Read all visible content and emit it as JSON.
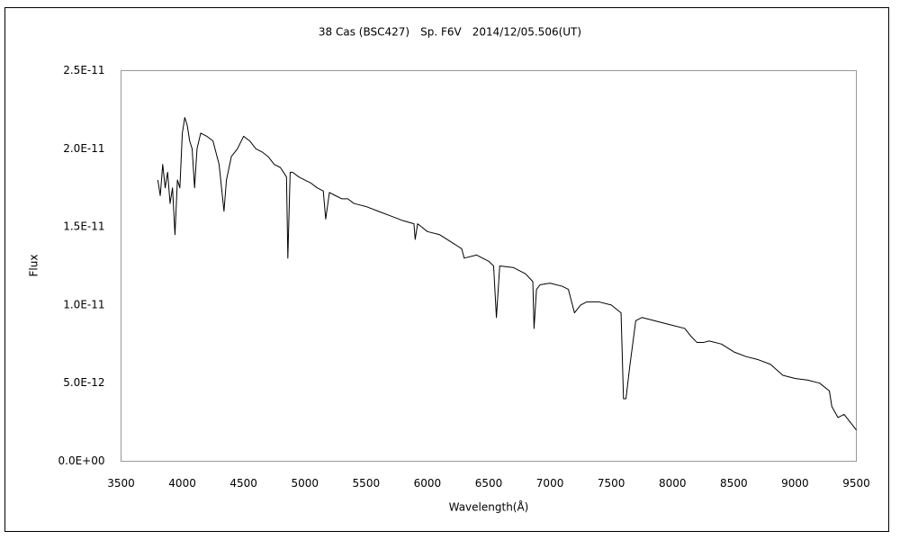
{
  "chart_data": {
    "type": "line",
    "title": "38 Cas (BSC427)　Sp. F6V　2014/12/05.506(UT)",
    "x_label": "Wavelength(Å)",
    "y_label": "Flux",
    "xlim": [
      3500,
      9500
    ],
    "xticks": [
      3500,
      4000,
      4500,
      5000,
      5500,
      6000,
      6500,
      7000,
      7500,
      8000,
      8500,
      9000,
      9500
    ],
    "ylim": [
      0,
      2.5e-11
    ],
    "yticks": [
      {
        "value": 0,
        "label": "0.0E+00"
      },
      {
        "value": 5e-12,
        "label": "5.0E-12"
      },
      {
        "value": 1e-11,
        "label": "1.0E-11"
      },
      {
        "value": 1.5e-11,
        "label": "1.5E-11"
      },
      {
        "value": 2e-11,
        "label": "2.0E-11"
      },
      {
        "value": 2.5e-11,
        "label": "2.5E-11"
      }
    ],
    "grid": false,
    "x": [
      3800,
      3820,
      3840,
      3860,
      3880,
      3900,
      3920,
      3940,
      3960,
      3980,
      4000,
      4020,
      4040,
      4060,
      4080,
      4100,
      4120,
      4150,
      4200,
      4250,
      4300,
      4340,
      4360,
      4400,
      4450,
      4500,
      4550,
      4600,
      4650,
      4700,
      4750,
      4800,
      4850,
      4861,
      4880,
      4900,
      4950,
      5000,
      5050,
      5100,
      5150,
      5170,
      5200,
      5250,
      5300,
      5350,
      5400,
      5450,
      5500,
      5600,
      5700,
      5800,
      5890,
      5900,
      5920,
      6000,
      6100,
      6200,
      6280,
      6300,
      6400,
      6500,
      6540,
      6563,
      6590,
      6700,
      6800,
      6860,
      6870,
      6890,
      6920,
      7000,
      7100,
      7150,
      7200,
      7250,
      7300,
      7400,
      7500,
      7580,
      7600,
      7620,
      7650,
      7700,
      7750,
      7800,
      7900,
      8000,
      8100,
      8150,
      8200,
      8250,
      8300,
      8400,
      8500,
      8600,
      8700,
      8800,
      8900,
      9000,
      9100,
      9200,
      9280,
      9300,
      9350,
      9400,
      9450,
      9500
    ],
    "series": [
      {
        "color": "#000000",
        "values": [
          1.8e-11,
          1.7e-11,
          1.9e-11,
          1.75e-11,
          1.85e-11,
          1.65e-11,
          1.75e-11,
          1.45e-11,
          1.8e-11,
          1.75e-11,
          2.1e-11,
          2.2e-11,
          2.15e-11,
          2.05e-11,
          2e-11,
          1.75e-11,
          2e-11,
          2.1e-11,
          2.08e-11,
          2.05e-11,
          1.9e-11,
          1.6e-11,
          1.8e-11,
          1.95e-11,
          2e-11,
          2.08e-11,
          2.05e-11,
          2e-11,
          1.98e-11,
          1.95e-11,
          1.9e-11,
          1.88e-11,
          1.82e-11,
          1.3e-11,
          1.85e-11,
          1.85e-11,
          1.82e-11,
          1.8e-11,
          1.78e-11,
          1.75e-11,
          1.73e-11,
          1.55e-11,
          1.72e-11,
          1.7e-11,
          1.68e-11,
          1.68e-11,
          1.65e-11,
          1.64e-11,
          1.63e-11,
          1.6e-11,
          1.57e-11,
          1.54e-11,
          1.52e-11,
          1.42e-11,
          1.52e-11,
          1.47e-11,
          1.45e-11,
          1.4e-11,
          1.36e-11,
          1.3e-11,
          1.32e-11,
          1.28e-11,
          1.25e-11,
          9.2e-12,
          1.25e-11,
          1.24e-11,
          1.2e-11,
          1.15e-11,
          8.5e-12,
          1.1e-11,
          1.13e-11,
          1.14e-11,
          1.12e-11,
          1.1e-11,
          9.5e-12,
          1e-11,
          1.02e-11,
          1.02e-11,
          1e-11,
          9.5e-12,
          4e-12,
          4e-12,
          6e-12,
          9e-12,
          9.2e-12,
          9.1e-12,
          8.9e-12,
          8.7e-12,
          8.5e-12,
          8e-12,
          7.6e-12,
          7.6e-12,
          7.7e-12,
          7.5e-12,
          7e-12,
          6.7e-12,
          6.5e-12,
          6.2e-12,
          5.5e-12,
          5.3e-12,
          5.2e-12,
          5e-12,
          4.5e-12,
          3.5e-12,
          2.8e-12,
          3e-12,
          2.5e-12,
          2e-12
        ]
      }
    ]
  }
}
